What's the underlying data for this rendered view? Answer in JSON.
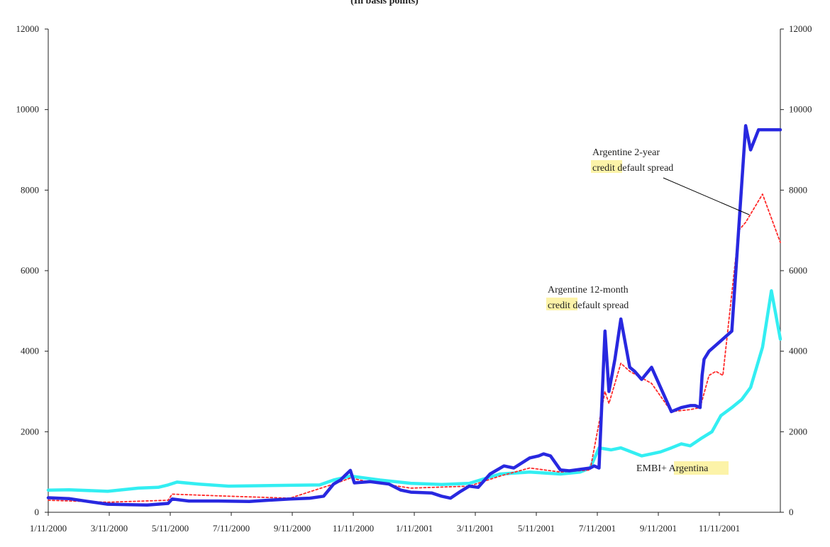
{
  "chart_data": {
    "type": "line",
    "subtitle": "(In basis points)",
    "xlabel": "",
    "ylabel": "",
    "ylim": [
      0,
      12000
    ],
    "yticks": [
      0,
      2000,
      4000,
      6000,
      8000,
      10000,
      12000
    ],
    "ytick_labels": [
      "0",
      "2000",
      "4000",
      "6000",
      "8000",
      "10000",
      "12000"
    ],
    "secondary_yticks": [
      0,
      2000,
      4000,
      6000,
      8000,
      10000,
      12000
    ],
    "secondary_ytick_labels": [
      "0",
      "2000",
      "4000",
      "6000",
      "8000",
      "10000",
      "12000"
    ],
    "xtick_labels": [
      "1/11/2000",
      "3/11/2000",
      "5/11/2000",
      "7/11/2000",
      "9/11/2000",
      "11/11/2000",
      "1/11/2001",
      "3/11/2001",
      "5/11/2001",
      "7/11/2001",
      "9/11/2001",
      "11/11/2001"
    ],
    "xlim": [
      "2000-01-11",
      "2002-01-19"
    ],
    "grid": false,
    "colors": {
      "cds_12m": "#2828e0",
      "cds_2y": "#ff2a2a",
      "embi": "#33eef2",
      "highlight": "#fcf3a8",
      "leader": "#000000"
    },
    "annotations": [
      {
        "id": "cds-2y-label",
        "lines": [
          "Argentine 2-year",
          "credit default spread"
        ]
      },
      {
        "id": "cds-12m-label",
        "lines": [
          "Argentine 12-month",
          "credit default spread"
        ]
      },
      {
        "id": "embi-label",
        "lines": [
          "EMBI+ Argentina"
        ]
      }
    ],
    "series": [
      {
        "key": "cds_12m",
        "x": [
          "2000-01-11",
          "2000-02-01",
          "2000-02-20",
          "2000-03-11",
          "2000-04-01",
          "2000-04-20",
          "2000-05-11",
          "2000-05-15",
          "2000-06-01",
          "2000-07-01",
          "2000-08-01",
          "2000-08-20",
          "2000-09-11",
          "2000-10-01",
          "2000-10-15",
          "2000-10-25",
          "2000-11-01",
          "2000-11-05",
          "2000-11-11",
          "2000-11-15",
          "2000-12-01",
          "2000-12-20",
          "2001-01-01",
          "2001-01-11",
          "2001-02-01",
          "2001-02-11",
          "2001-02-20",
          "2001-03-01",
          "2001-03-11",
          "2001-03-20",
          "2001-04-01",
          "2001-04-15",
          "2001-04-25",
          "2001-05-11",
          "2001-05-20",
          "2001-05-25",
          "2001-06-01",
          "2001-06-11",
          "2001-06-20",
          "2001-07-11",
          "2001-07-15",
          "2001-07-20",
          "2001-07-26",
          "2001-07-30",
          "2001-08-05",
          "2001-08-11",
          "2001-08-20",
          "2001-08-25",
          "2001-09-01",
          "2001-09-11",
          "2001-10-01",
          "2001-10-11",
          "2001-10-20",
          "2001-10-25",
          "2001-10-30",
          "2001-11-01",
          "2001-11-03",
          "2001-11-08",
          "2001-12-01",
          "2001-12-15",
          "2001-12-20",
          "2001-12-28",
          "2002-01-19"
        ],
        "y": [
          360,
          340,
          270,
          200,
          190,
          180,
          220,
          330,
          280,
          280,
          270,
          300,
          330,
          350,
          400,
          700,
          800,
          900,
          1040,
          730,
          760,
          700,
          550,
          500,
          480,
          400,
          350,
          500,
          650,
          620,
          950,
          1150,
          1100,
          1350,
          1400,
          1450,
          1400,
          1050,
          1030,
          1100,
          1150,
          1100,
          4500,
          3000,
          3800,
          4800,
          3600,
          3500,
          3300,
          3600,
          2500,
          2600,
          2650,
          2650,
          2600,
          3400,
          3800,
          4000,
          4500,
          9600,
          9000,
          9500,
          9500
        ]
      },
      {
        "key": "cds_2y",
        "x": [
          "2000-01-11",
          "2000-03-11",
          "2000-05-11",
          "2000-05-15",
          "2000-07-11",
          "2000-09-11",
          "2000-10-25",
          "2000-11-11",
          "2000-12-01",
          "2001-01-11",
          "2001-03-11",
          "2001-04-11",
          "2001-05-11",
          "2001-06-11",
          "2001-07-11",
          "2001-07-26",
          "2001-07-30",
          "2001-08-11",
          "2001-08-20",
          "2001-09-11",
          "2001-10-01",
          "2001-10-20",
          "2001-10-30",
          "2001-11-08",
          "2001-11-15",
          "2001-11-22",
          "2001-12-08",
          "2001-12-15",
          "2002-01-01",
          "2002-01-19"
        ],
        "y": [
          300,
          250,
          300,
          450,
          400,
          350,
          700,
          850,
          750,
          600,
          650,
          900,
          1100,
          1000,
          1050,
          3000,
          2700,
          3700,
          3500,
          3200,
          2500,
          2550,
          2600,
          3400,
          3500,
          3400,
          7000,
          7200,
          7900,
          6700
        ]
      },
      {
        "key": "embi",
        "x": [
          "2000-01-11",
          "2000-02-01",
          "2000-03-11",
          "2000-04-11",
          "2000-05-01",
          "2000-05-11",
          "2000-05-20",
          "2000-06-11",
          "2000-07-11",
          "2000-08-11",
          "2000-09-11",
          "2000-10-11",
          "2000-10-25",
          "2000-11-11",
          "2000-12-11",
          "2001-01-11",
          "2001-02-11",
          "2001-03-11",
          "2001-04-11",
          "2001-05-11",
          "2001-06-11",
          "2001-07-01",
          "2001-07-11",
          "2001-07-20",
          "2001-08-01",
          "2001-08-11",
          "2001-09-01",
          "2001-09-20",
          "2001-10-01",
          "2001-10-11",
          "2001-10-20",
          "2001-11-01",
          "2001-11-11",
          "2001-11-20",
          "2001-12-01",
          "2001-12-11",
          "2001-12-20",
          "2002-01-01",
          "2002-01-10",
          "2002-01-19"
        ],
        "y": [
          550,
          560,
          520,
          600,
          620,
          680,
          750,
          700,
          650,
          660,
          670,
          680,
          800,
          900,
          800,
          720,
          690,
          720,
          950,
          1000,
          950,
          1000,
          1100,
          1600,
          1550,
          1600,
          1400,
          1500,
          1600,
          1700,
          1650,
          1850,
          2000,
          2400,
          2600,
          2800,
          3100,
          4100,
          5500,
          4300
        ]
      }
    ]
  }
}
